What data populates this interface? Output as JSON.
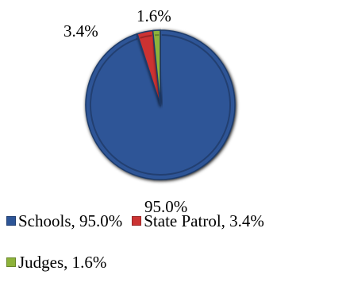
{
  "chart_data": {
    "type": "pie",
    "title": "",
    "series": [
      {
        "name": "Schools",
        "value": 95.0,
        "label": "95.0%",
        "color": "#2D5597"
      },
      {
        "name": "State Patrol",
        "value": 3.4,
        "label": "3.4%",
        "color": "#CC3333"
      },
      {
        "name": "Judges",
        "value": 1.6,
        "label": "1.6%",
        "color": "#8DB33A"
      }
    ],
    "legend": {
      "placement": "bottom",
      "entries": [
        "Schools, 95.0%",
        "State Patrol, 3.4%",
        "Judges, 1.6%"
      ]
    }
  }
}
